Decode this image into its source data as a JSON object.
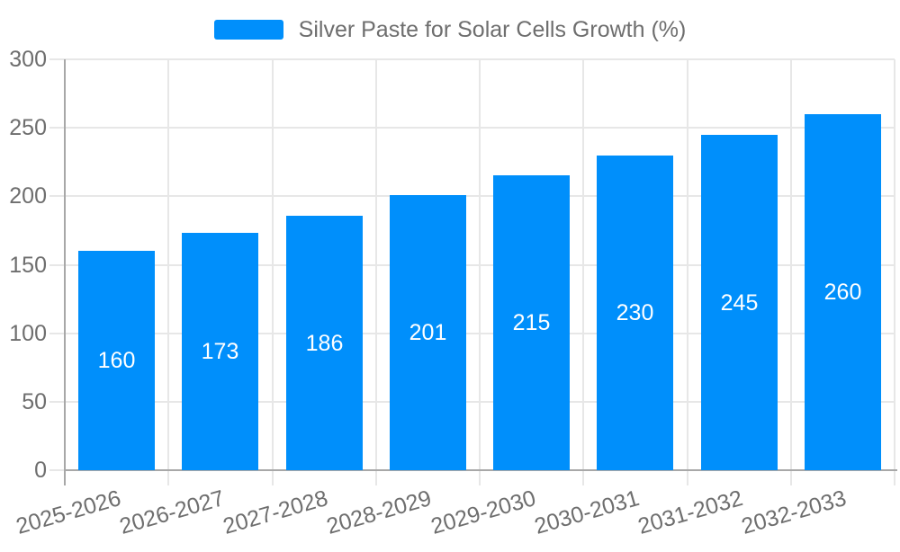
{
  "legend": {
    "label": "Silver Paste for Solar Cells Growth (%)",
    "position": "top"
  },
  "colors": {
    "bar": "#008FFB",
    "text": "#6e6e6e",
    "grid": "#e7e7e7",
    "axis": "#a8a8a8",
    "bar_label": "#ffffff",
    "background": "#ffffff"
  },
  "chart_data": {
    "type": "bar",
    "title": "Silver Paste for Solar Cells Growth (%)",
    "categories": [
      "2025-2026",
      "2026-2027",
      "2027-2028",
      "2028-2029",
      "2029-2030",
      "2030-2031",
      "2031-2032",
      "2032-2033"
    ],
    "series": [
      {
        "name": "Silver Paste for Solar Cells Growth (%)",
        "values": [
          160,
          173,
          186,
          201,
          215,
          230,
          245,
          260
        ]
      }
    ],
    "bar_value_labels": [
      160,
      173,
      186,
      201,
      215,
      230,
      245,
      260
    ],
    "xlabel": "",
    "ylabel": "",
    "ylim": [
      0,
      300
    ],
    "ytick_step": 50,
    "ytick_labels": [
      "0",
      "50",
      "100",
      "150",
      "200",
      "250",
      "300"
    ],
    "grid": true,
    "legend_position": "top",
    "x_label_rotation_deg": -16
  }
}
